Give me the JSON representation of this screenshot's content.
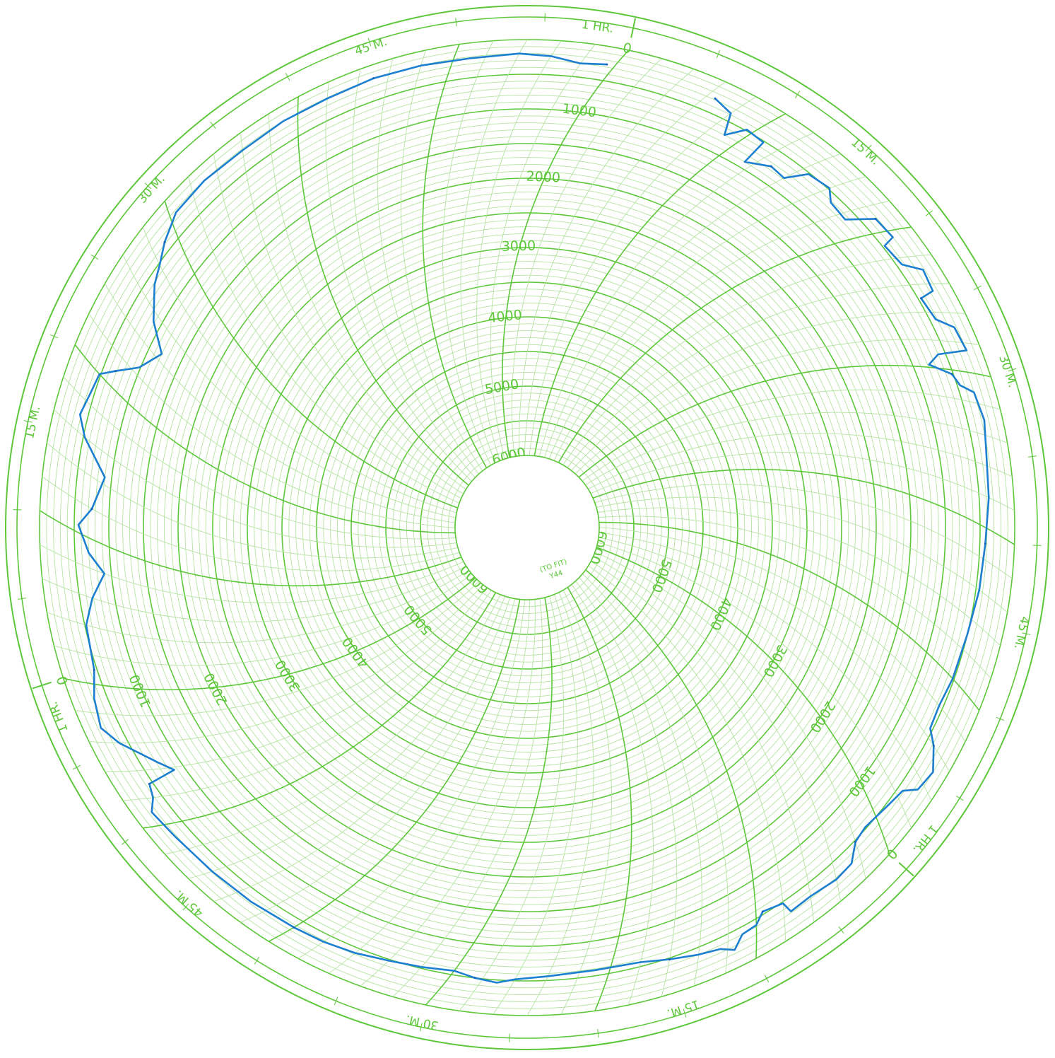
{
  "chart_data": {
    "type": "circular-recorder-chart",
    "title": "",
    "model_lines": [
      "(TO FIT)",
      "Y44"
    ],
    "scale_labels": [
      "0",
      "1000",
      "2000",
      "3000",
      "4000",
      "5000",
      "6000"
    ],
    "scale_range": [
      0,
      6000
    ],
    "time_labels": [
      "15 M.",
      "30 M.",
      "45 M.",
      "1 HR."
    ],
    "revolution_minutes": 60,
    "colors": {
      "grid": "#5dc73a",
      "grid_fine": "#b4e3a0",
      "trace": "#1c7fd0",
      "trace_dark": "#1660b8"
    },
    "trace": [
      {
        "t": 6.5,
        "v": 280
      },
      {
        "t": 8.0,
        "v": 380
      },
      {
        "t": 9.0,
        "v": 700
      },
      {
        "t": 9.6,
        "v": 480
      },
      {
        "t": 11.0,
        "v": 520
      },
      {
        "t": 11.5,
        "v": 900
      },
      {
        "t": 12.8,
        "v": 750
      },
      {
        "t": 14.0,
        "v": 780
      },
      {
        "t": 14.5,
        "v": 520
      },
      {
        "t": 16.0,
        "v": 480
      },
      {
        "t": 17.0,
        "v": 620
      },
      {
        "t": 18.5,
        "v": 650
      },
      {
        "t": 19.0,
        "v": 320
      },
      {
        "t": 20.5,
        "v": 300
      },
      {
        "t": 21.0,
        "v": 470
      },
      {
        "t": 22.5,
        "v": 430
      },
      {
        "t": 23.0,
        "v": 220
      },
      {
        "t": 24.5,
        "v": 260
      },
      {
        "t": 25.0,
        "v": 460
      },
      {
        "t": 26.5,
        "v": 420
      },
      {
        "t": 27.0,
        "v": 230
      },
      {
        "t": 28.5,
        "v": 200
      },
      {
        "t": 29.0,
        "v": 600
      },
      {
        "t": 29.8,
        "v": 780
      },
      {
        "t": 30.3,
        "v": 520
      },
      {
        "t": 31.0,
        "v": 460
      },
      {
        "t": 31.3,
        "v": 300
      },
      {
        "t": 33.0,
        "v": 260
      },
      {
        "t": 35.0,
        "v": 320
      },
      {
        "t": 38.0,
        "v": 360
      },
      {
        "t": 41.0,
        "v": 420
      },
      {
        "t": 44.0,
        "v": 450
      },
      {
        "t": 47.0,
        "v": 500
      },
      {
        "t": 50.0,
        "v": 520
      },
      {
        "t": 52.0,
        "v": 560
      },
      {
        "t": 53.5,
        "v": 540
      },
      {
        "t": 54.0,
        "v": 380
      },
      {
        "t": 55.0,
        "v": 200
      },
      {
        "t": 56.5,
        "v": 250
      },
      {
        "t": 57.5,
        "v": 420
      },
      {
        "t": 59.0,
        "v": 470
      },
      {
        "t": 61.0,
        "v": 520
      },
      {
        "t": 62.0,
        "v": 480
      },
      {
        "t": 62.7,
        "v": 300
      },
      {
        "t": 64.0,
        "v": 280
      },
      {
        "t": 66.0,
        "v": 330
      },
      {
        "t": 67.5,
        "v": 320
      },
      {
        "t": 68.0,
        "v": 480
      },
      {
        "t": 69.5,
        "v": 540
      },
      {
        "t": 70.0,
        "v": 420
      },
      {
        "t": 71.0,
        "v": 400
      },
      {
        "t": 71.5,
        "v": 250
      },
      {
        "t": 72.5,
        "v": 350
      },
      {
        "t": 74.0,
        "v": 400
      },
      {
        "t": 76.0,
        "v": 480
      },
      {
        "t": 78.0,
        "v": 560
      },
      {
        "t": 81.0,
        "v": 580
      },
      {
        "t": 84.0,
        "v": 560
      },
      {
        "t": 86.0,
        "v": 520
      },
      {
        "t": 87.0,
        "v": 460
      },
      {
        "t": 88.5,
        "v": 500
      },
      {
        "t": 90.0,
        "v": 560
      },
      {
        "t": 92.0,
        "v": 520
      },
      {
        "t": 94.0,
        "v": 480
      },
      {
        "t": 96.0,
        "v": 420
      },
      {
        "t": 98.0,
        "v": 380
      },
      {
        "t": 100.0,
        "v": 360
      },
      {
        "t": 103.0,
        "v": 330
      },
      {
        "t": 106.0,
        "v": 310
      },
      {
        "t": 109.0,
        "v": 280
      },
      {
        "t": 111.0,
        "v": 240
      },
      {
        "t": 112.0,
        "v": 380
      },
      {
        "t": 113.0,
        "v": 450
      },
      {
        "t": 113.8,
        "v": 860
      },
      {
        "t": 114.5,
        "v": 720
      },
      {
        "t": 116.0,
        "v": 380
      },
      {
        "t": 117.0,
        "v": 240
      },
      {
        "t": 119.0,
        "v": 320
      },
      {
        "t": 121.0,
        "v": 460
      },
      {
        "t": 124.0,
        "v": 520
      },
      {
        "t": 126.0,
        "v": 680
      },
      {
        "t": 128.0,
        "v": 900
      },
      {
        "t": 129.0,
        "v": 700
      },
      {
        "t": 130.5,
        "v": 560
      },
      {
        "t": 132.0,
        "v": 750
      },
      {
        "t": 134.5,
        "v": 900
      },
      {
        "t": 136.0,
        "v": 520
      },
      {
        "t": 137.0,
        "v": 380
      },
      {
        "t": 138.5,
        "v": 440
      },
      {
        "t": 140.0,
        "v": 480
      },
      {
        "t": 141.0,
        "v": 680
      },
      {
        "t": 142.5,
        "v": 980
      },
      {
        "t": 144.5,
        "v": 1200
      },
      {
        "t": 145.5,
        "v": 880
      },
      {
        "t": 147.0,
        "v": 620
      },
      {
        "t": 148.0,
        "v": 520
      },
      {
        "t": 149.0,
        "v": 380
      },
      {
        "t": 150.5,
        "v": 230
      },
      {
        "t": 153.0,
        "v": 200
      },
      {
        "t": 156.0,
        "v": 220
      },
      {
        "t": 159.0,
        "v": 200
      },
      {
        "t": 162.0,
        "v": 210
      },
      {
        "t": 165.0,
        "v": 190
      },
      {
        "t": 168.0,
        "v": 200
      },
      {
        "t": 171.0,
        "v": 220
      },
      {
        "t": 174.0,
        "v": 200
      },
      {
        "t": 176.0,
        "v": 230
      },
      {
        "t": 178.0,
        "v": 300
      },
      {
        "t": 179.5,
        "v": 260
      }
    ]
  }
}
